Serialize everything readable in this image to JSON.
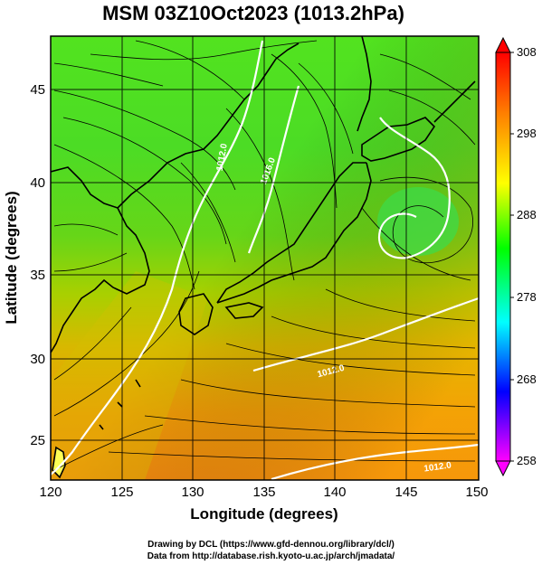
{
  "title": "MSM 03Z10Oct2023 (1013.2hPa)",
  "axes": {
    "xlabel": "Longitude (degrees)",
    "ylabel": "Latitude  (degrees)",
    "xticks": [
      "120",
      "125",
      "130",
      "135",
      "140",
      "145",
      "150"
    ],
    "yticks": [
      "25",
      "30",
      "35",
      "40",
      "45"
    ],
    "xlim": [
      120,
      150
    ],
    "ylim": [
      22.4,
      47.6
    ]
  },
  "colorbar": {
    "ticks": [
      "308",
      "298",
      "288",
      "278",
      "268",
      "258"
    ],
    "range": [
      258,
      308
    ],
    "colors": [
      "#ff00ff",
      "#0000ff",
      "#00ffff",
      "#00ff00",
      "#ffff00",
      "#ff8000",
      "#ff0000"
    ]
  },
  "contours": [
    {
      "label": "1016.0"
    },
    {
      "label": "1012.0"
    },
    {
      "label": "1012.0"
    },
    {
      "label": "1012.0"
    }
  ],
  "credits": {
    "line1": "Drawing by DCL (https://www.gfd-dennou.org/library/dcl/)",
    "line2": "Data from http://database.rish.kyoto-u.ac.jp/arch/jmadata/"
  }
}
